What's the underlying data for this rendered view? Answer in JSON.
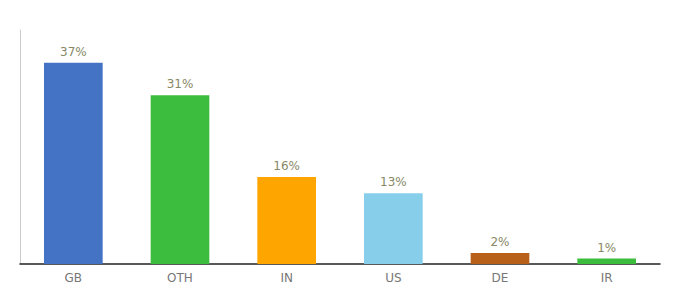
{
  "chart_data": {
    "type": "bar",
    "categories": [
      "GB",
      "OTH",
      "IN",
      "US",
      "DE",
      "IR"
    ],
    "values": [
      37,
      31,
      16,
      13,
      2,
      1
    ],
    "value_labels": [
      "37%",
      "31%",
      "16%",
      "13%",
      "2%",
      "1%"
    ],
    "colors": [
      "#4472C4",
      "#3DBD3D",
      "#FFA500",
      "#87CEEB",
      "#B8601A",
      "#3DBD3D"
    ],
    "ylim": [
      0,
      43
    ],
    "data_labels": true,
    "tick_labels": "x",
    "grid": false
  }
}
